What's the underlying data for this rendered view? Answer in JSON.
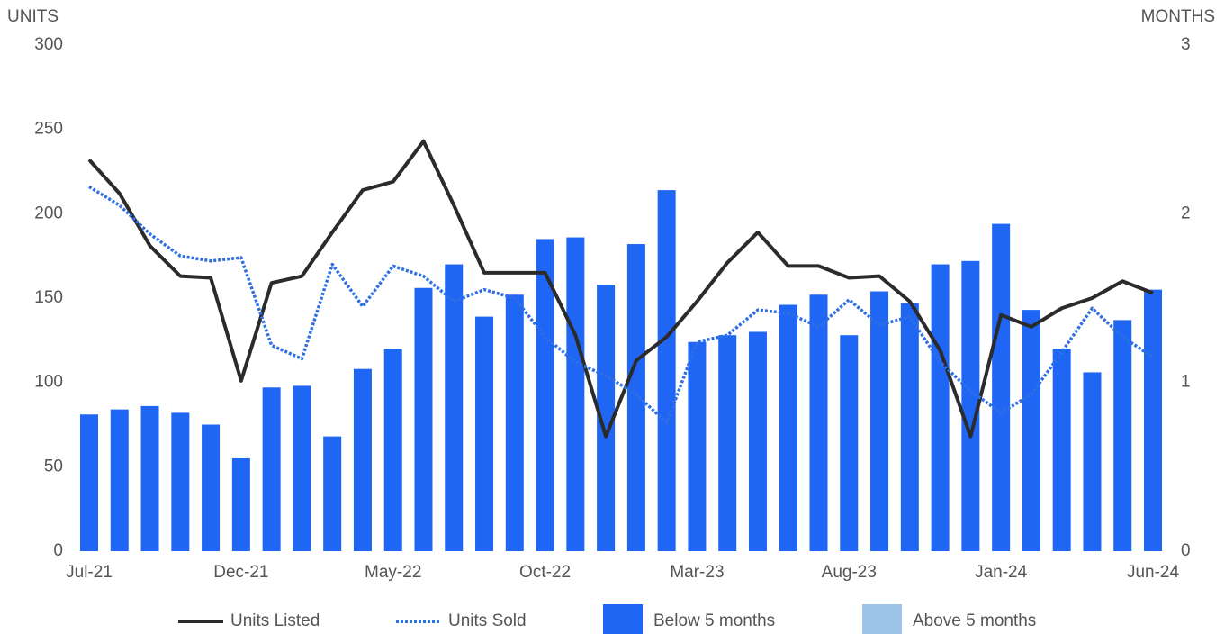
{
  "chart_data": {
    "type": "combo",
    "y_label": "UNITS",
    "y2_label": "MONTHS",
    "categories": [
      "Jul-21",
      null,
      null,
      null,
      null,
      "Dec-21",
      null,
      null,
      null,
      null,
      "May-22",
      null,
      null,
      null,
      null,
      "Oct-22",
      null,
      null,
      null,
      null,
      "Mar-23",
      null,
      null,
      null,
      null,
      "Aug-23",
      null,
      null,
      null,
      null,
      "Jan-24",
      null,
      null,
      null,
      null,
      "Jun-24"
    ],
    "ylim": [
      0,
      300
    ],
    "yticks": [
      0,
      50,
      100,
      150,
      200,
      250,
      300
    ],
    "y2lim": [
      0,
      3
    ],
    "y2ticks": [
      0,
      1,
      2,
      3
    ],
    "series": [
      {
        "name": "Units Listed",
        "type": "line",
        "line_style": "solid",
        "color": "#2b2b2b",
        "values": [
          232,
          212,
          181,
          163,
          162,
          101,
          159,
          163,
          189,
          214,
          219,
          243,
          205,
          165,
          165,
          165,
          128,
          68,
          113,
          127,
          148,
          171,
          189,
          169,
          169,
          162,
          163,
          148,
          119,
          68,
          140,
          133,
          144,
          150,
          160,
          153
        ]
      },
      {
        "name": "Units Sold",
        "type": "line",
        "line_style": "dotted",
        "color": "#2f6fe4",
        "values": [
          216,
          205,
          188,
          175,
          172,
          174,
          122,
          114,
          170,
          145,
          169,
          163,
          148,
          155,
          150,
          127,
          112,
          104,
          93,
          76,
          124,
          128,
          143,
          141,
          133,
          149,
          134,
          139,
          112,
          95,
          82,
          93,
          118,
          144,
          127,
          115
        ]
      },
      {
        "name": "Below 5 months",
        "type": "bar",
        "axis": "y2",
        "color": "#1f66f5",
        "values": [
          0.81,
          0.84,
          0.86,
          0.82,
          0.75,
          0.55,
          0.97,
          0.98,
          0.68,
          1.08,
          1.2,
          1.56,
          1.7,
          1.39,
          1.52,
          1.85,
          1.86,
          1.58,
          1.82,
          2.14,
          1.24,
          1.28,
          1.3,
          1.46,
          1.52,
          1.28,
          1.54,
          1.47,
          1.7,
          1.72,
          1.94,
          1.43,
          1.2,
          1.06,
          1.37,
          1.55
        ]
      },
      {
        "name": "Above 5 months",
        "type": "bar",
        "axis": "y2",
        "color": "#9dc3e6",
        "values": [
          null,
          null,
          null,
          null,
          null,
          null,
          null,
          null,
          null,
          null,
          null,
          null,
          null,
          null,
          null,
          null,
          null,
          null,
          null,
          null,
          null,
          null,
          null,
          null,
          null,
          null,
          null,
          null,
          null,
          null,
          null,
          null,
          null,
          null,
          null,
          null
        ]
      }
    ]
  }
}
